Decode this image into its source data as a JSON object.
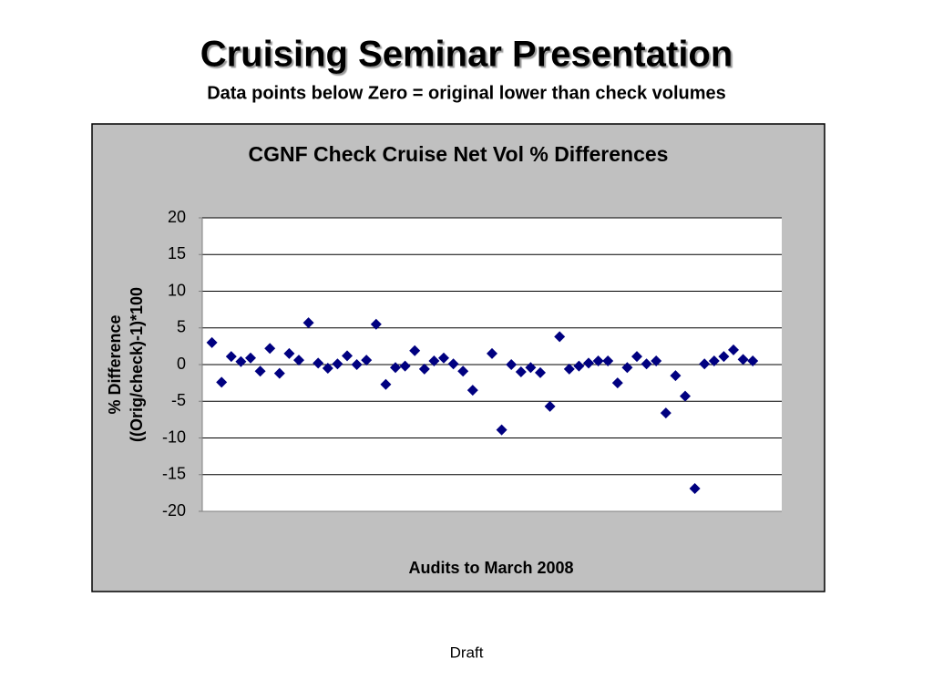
{
  "header": {
    "title": "Cruising Seminar Presentation",
    "subtitle": "Data points below Zero = original lower than check volumes"
  },
  "chart_data": {
    "type": "scatter",
    "title": "CGNF Check Cruise Net Vol % Differences",
    "xlabel": "Audits to March 2008",
    "ylabel": [
      "% Difference",
      "((Orig/check)-1)*100"
    ],
    "color": "#000080",
    "grid": true,
    "xlim": [
      0,
      60
    ],
    "ylim": [
      -20,
      20
    ],
    "yticks": [
      -20,
      -15,
      -10,
      -5,
      0,
      5,
      10,
      15,
      20
    ],
    "series": [
      {
        "name": "Differences",
        "x": [
          1,
          2,
          3,
          4,
          5,
          6,
          7,
          8,
          9,
          10,
          11,
          12,
          13,
          14,
          15,
          16,
          17,
          18,
          19,
          20,
          21,
          22,
          23,
          24,
          25,
          26,
          27,
          28,
          30,
          31,
          32,
          33,
          34,
          35,
          36,
          37,
          38,
          39,
          40,
          41,
          42,
          43,
          44,
          45,
          46,
          47,
          48,
          49,
          50,
          51,
          52,
          53,
          54,
          55,
          56,
          57
        ],
        "values": [
          3.0,
          -2.4,
          1.1,
          0.4,
          0.9,
          -0.9,
          2.2,
          -1.2,
          1.5,
          0.6,
          5.7,
          0.2,
          -0.5,
          0.1,
          1.2,
          0,
          0.6,
          5.5,
          -2.7,
          -0.4,
          -0.2,
          1.9,
          -0.6,
          0.5,
          0.9,
          0.1,
          -0.9,
          -3.5,
          1.5,
          -8.9,
          0,
          -1.0,
          -0.4,
          -1.1,
          -5.7,
          3.8,
          -0.6,
          -0.2,
          0.2,
          0.5,
          0.5,
          -2.5,
          -0.4,
          1.1,
          0.1,
          0.5,
          -6.6,
          -1.5,
          -4.3,
          -16.9,
          0.1,
          0.5,
          1.1,
          2.0,
          0.7,
          0.5
        ]
      }
    ]
  },
  "footer": "Draft"
}
